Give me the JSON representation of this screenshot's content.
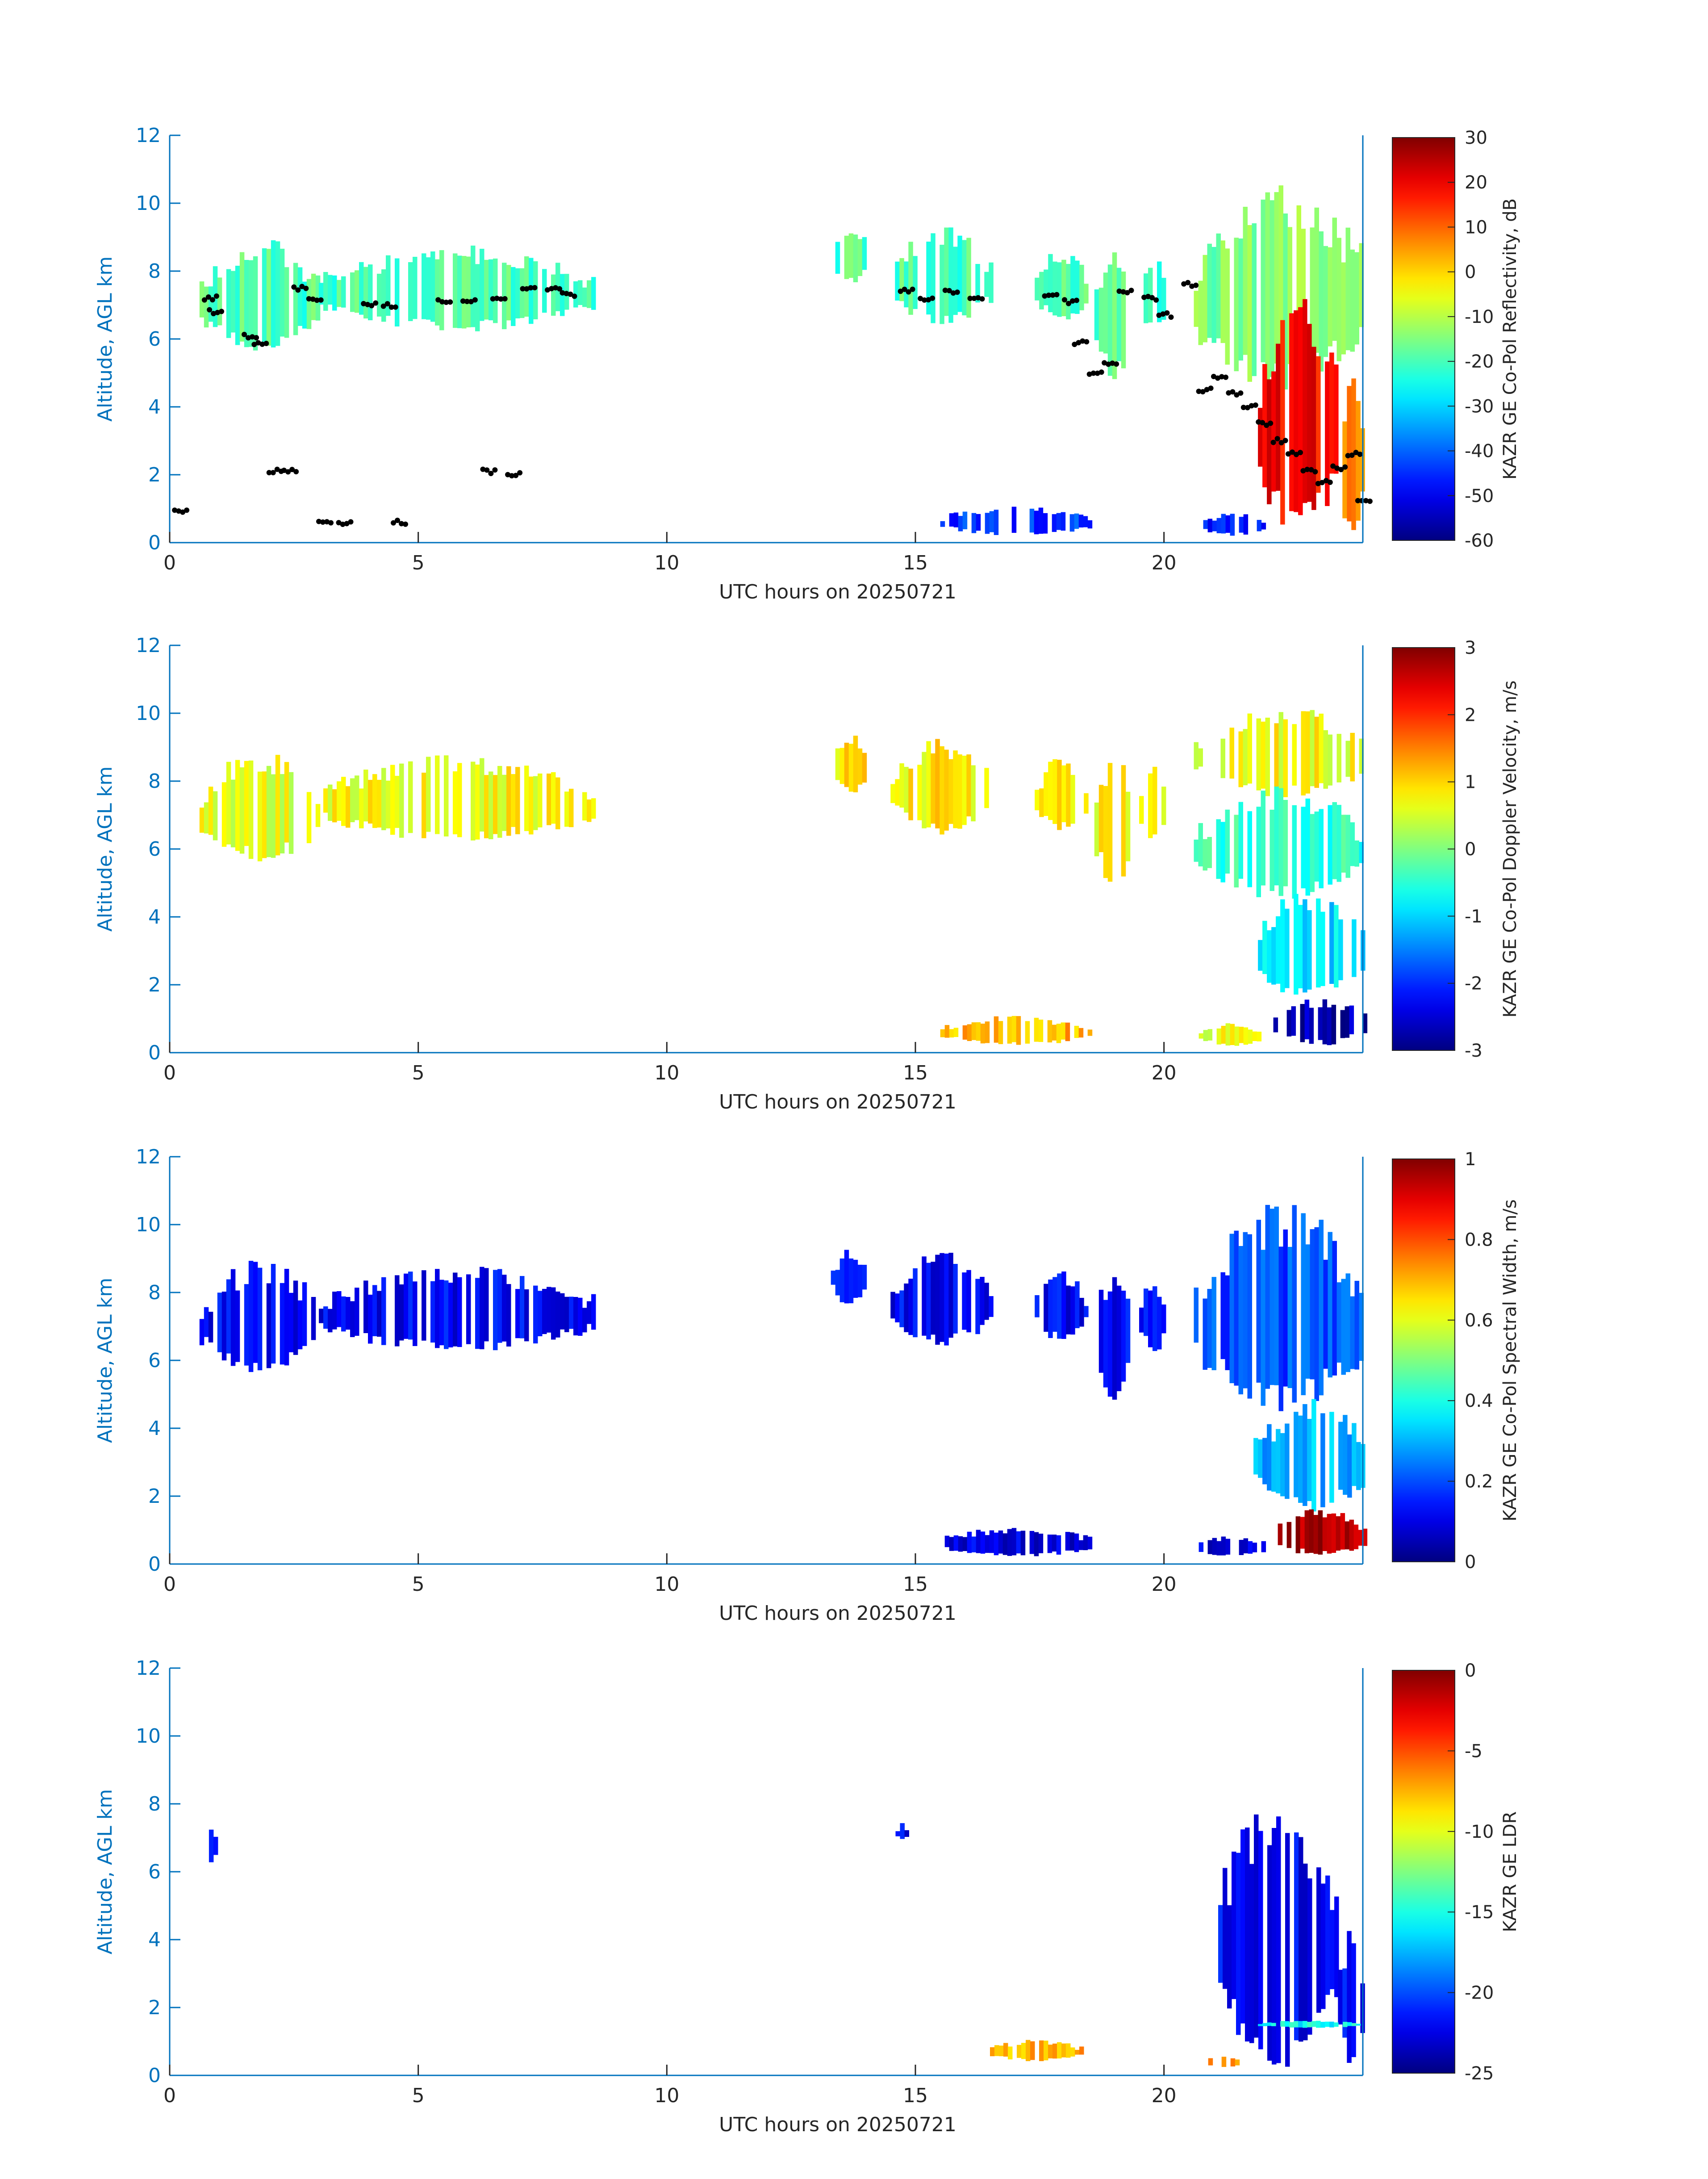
{
  "figure": {
    "xlabel": "UTC hours on 20250721",
    "ylabel": "Altitude, AGL km",
    "axis_color": "#0072bd",
    "xticks": [
      0,
      5,
      10,
      15,
      20
    ],
    "yticks": [
      0,
      2,
      4,
      6,
      8,
      10,
      12
    ],
    "xlim": [
      0,
      24
    ],
    "ylim": [
      0,
      12
    ]
  },
  "chart_data": [
    {
      "type": "heatmap",
      "title": "",
      "xlabel": "UTC hours on 20250721",
      "ylabel": "Altitude, AGL km",
      "xlim": [
        0,
        24
      ],
      "ylim": [
        0,
        12
      ],
      "colorbar": {
        "label": "KAZR GE Co-Pol Reflectivity, dB",
        "range": [
          -60,
          30
        ],
        "ticks": [
          30,
          20,
          10,
          0,
          -10,
          -20,
          -30,
          -40,
          -50,
          -60
        ]
      },
      "fill_value": 0.45,
      "regions": [
        {
          "x": [
            0.6,
            3.0
          ],
          "y": [
            5.6,
            8.6
          ],
          "value": 0.45
        },
        {
          "x": [
            3.0,
            8.5
          ],
          "y": [
            6.2,
            8.5
          ],
          "value": 0.45
        },
        {
          "x": [
            13.3,
            14.0
          ],
          "y": [
            7.6,
            9.2
          ],
          "value": 0.45
        },
        {
          "x": [
            14.5,
            16.5
          ],
          "y": [
            6.4,
            9.0
          ],
          "value": 0.45
        },
        {
          "x": [
            17.4,
            18.4
          ],
          "y": [
            6.5,
            8.5
          ],
          "value": 0.45
        },
        {
          "x": [
            18.6,
            19.3
          ],
          "y": [
            4.8,
            8.5
          ],
          "value": 0.45
        },
        {
          "x": [
            19.5,
            20.0
          ],
          "y": [
            6.2,
            8.2
          ],
          "value": 0.45
        },
        {
          "x": [
            20.6,
            24.0
          ],
          "y": [
            4.5,
            10.0
          ],
          "value": 0.5
        },
        {
          "x": [
            21.8,
            23.5
          ],
          "y": [
            0.2,
            6.5
          ],
          "value": 0.88
        },
        {
          "x": [
            23.5,
            24.0
          ],
          "y": [
            0.2,
            4.5
          ],
          "value": 0.75
        },
        {
          "x": [
            15.5,
            18.5
          ],
          "y": [
            0.2,
            1.0
          ],
          "value": 0.18
        },
        {
          "x": [
            20.7,
            22.0
          ],
          "y": [
            0.2,
            0.8
          ],
          "value": 0.15
        }
      ],
      "cloud_base_points": [
        {
          "x": 0.1,
          "y": 0.9
        },
        {
          "x": 0.7,
          "y": 7.2
        },
        {
          "x": 0.8,
          "y": 6.8
        },
        {
          "x": 1.5,
          "y": 6.1
        },
        {
          "x": 1.7,
          "y": 5.9
        },
        {
          "x": 2.0,
          "y": 2.1
        },
        {
          "x": 2.3,
          "y": 2.1
        },
        {
          "x": 2.5,
          "y": 7.5
        },
        {
          "x": 2.8,
          "y": 7.2
        },
        {
          "x": 3.0,
          "y": 0.6
        },
        {
          "x": 3.4,
          "y": 0.6
        },
        {
          "x": 3.9,
          "y": 7.0
        },
        {
          "x": 4.3,
          "y": 7.0
        },
        {
          "x": 4.5,
          "y": 0.6
        },
        {
          "x": 5.4,
          "y": 7.1
        },
        {
          "x": 5.9,
          "y": 7.1
        },
        {
          "x": 6.3,
          "y": 2.1
        },
        {
          "x": 6.5,
          "y": 7.2
        },
        {
          "x": 6.8,
          "y": 2.0
        },
        {
          "x": 7.1,
          "y": 7.5
        },
        {
          "x": 7.6,
          "y": 7.5
        },
        {
          "x": 7.9,
          "y": 7.3
        },
        {
          "x": 14.7,
          "y": 7.4
        },
        {
          "x": 15.1,
          "y": 7.2
        },
        {
          "x": 15.6,
          "y": 7.4
        },
        {
          "x": 16.1,
          "y": 7.2
        },
        {
          "x": 17.6,
          "y": 7.3
        },
        {
          "x": 18.0,
          "y": 7.1
        },
        {
          "x": 18.2,
          "y": 5.9
        },
        {
          "x": 18.5,
          "y": 5.0
        },
        {
          "x": 18.8,
          "y": 5.3
        },
        {
          "x": 19.1,
          "y": 7.4
        },
        {
          "x": 19.6,
          "y": 7.2
        },
        {
          "x": 19.9,
          "y": 6.7
        },
        {
          "x": 20.4,
          "y": 7.6
        },
        {
          "x": 20.7,
          "y": 4.5
        },
        {
          "x": 21.0,
          "y": 4.9
        },
        {
          "x": 21.3,
          "y": 4.4
        },
        {
          "x": 21.6,
          "y": 4.0
        },
        {
          "x": 21.9,
          "y": 3.5
        },
        {
          "x": 22.2,
          "y": 3.0
        },
        {
          "x": 22.5,
          "y": 2.6
        },
        {
          "x": 22.8,
          "y": 2.1
        },
        {
          "x": 23.1,
          "y": 1.8
        },
        {
          "x": 23.4,
          "y": 2.2
        },
        {
          "x": 23.7,
          "y": 2.6
        },
        {
          "x": 23.9,
          "y": 1.2
        }
      ]
    },
    {
      "type": "heatmap",
      "title": "",
      "xlabel": "UTC hours on 20250721",
      "ylabel": "Altitude, AGL km",
      "xlim": [
        0,
        24
      ],
      "ylim": [
        0,
        12
      ],
      "colorbar": {
        "label": "KAZR GE Co-Pol Doppler Velocity, m/s",
        "range": [
          -3,
          3
        ],
        "ticks": [
          3,
          2,
          1,
          0,
          -1,
          -2,
          -3
        ]
      },
      "fill_value": 0.6,
      "regions": [
        {
          "x": [
            0.6,
            3.0
          ],
          "y": [
            5.6,
            8.6
          ],
          "value": 0.6
        },
        {
          "x": [
            3.0,
            8.5
          ],
          "y": [
            6.2,
            8.5
          ],
          "value": 0.62
        },
        {
          "x": [
            13.3,
            14.0
          ],
          "y": [
            7.6,
            9.2
          ],
          "value": 0.65
        },
        {
          "x": [
            14.5,
            16.5
          ],
          "y": [
            6.4,
            9.0
          ],
          "value": 0.64
        },
        {
          "x": [
            17.4,
            18.4
          ],
          "y": [
            6.5,
            8.5
          ],
          "value": 0.65
        },
        {
          "x": [
            18.6,
            19.3
          ],
          "y": [
            4.8,
            8.5
          ],
          "value": 0.63
        },
        {
          "x": [
            19.5,
            20.0
          ],
          "y": [
            6.2,
            8.2
          ],
          "value": 0.6
        },
        {
          "x": [
            20.6,
            24.0
          ],
          "y": [
            7.5,
            10.0
          ],
          "value": 0.62
        },
        {
          "x": [
            20.6,
            24.0
          ],
          "y": [
            4.5,
            7.5
          ],
          "value": 0.42
        },
        {
          "x": [
            21.8,
            24.0
          ],
          "y": [
            1.5,
            4.5
          ],
          "value": 0.34
        },
        {
          "x": [
            22.2,
            24.0
          ],
          "y": [
            0.2,
            1.5
          ],
          "value": 0.04
        },
        {
          "x": [
            15.5,
            18.5
          ],
          "y": [
            0.2,
            1.0
          ],
          "value": 0.7
        },
        {
          "x": [
            20.7,
            22.0
          ],
          "y": [
            0.2,
            0.8
          ],
          "value": 0.6
        }
      ]
    },
    {
      "type": "heatmap",
      "title": "",
      "xlabel": "UTC hours on 20250721",
      "ylabel": "Altitude, AGL km",
      "xlim": [
        0,
        24
      ],
      "ylim": [
        0,
        12
      ],
      "colorbar": {
        "label": "KAZR GE Co-Pol Spectral Width, m/s",
        "range": [
          0,
          1
        ],
        "ticks": [
          1,
          0.8,
          0.6,
          0.4,
          0.2,
          0
        ]
      },
      "fill_value": 0.12,
      "regions": [
        {
          "x": [
            0.6,
            3.0
          ],
          "y": [
            5.6,
            8.6
          ],
          "value": 0.12
        },
        {
          "x": [
            3.0,
            8.5
          ],
          "y": [
            6.2,
            8.5
          ],
          "value": 0.12
        },
        {
          "x": [
            13.3,
            14.0
          ],
          "y": [
            7.6,
            9.2
          ],
          "value": 0.12
        },
        {
          "x": [
            14.5,
            16.5
          ],
          "y": [
            6.4,
            9.0
          ],
          "value": 0.12
        },
        {
          "x": [
            17.4,
            18.4
          ],
          "y": [
            6.5,
            8.5
          ],
          "value": 0.12
        },
        {
          "x": [
            18.6,
            19.3
          ],
          "y": [
            4.8,
            8.5
          ],
          "value": 0.12
        },
        {
          "x": [
            19.5,
            20.0
          ],
          "y": [
            6.2,
            8.2
          ],
          "value": 0.12
        },
        {
          "x": [
            20.6,
            24.0
          ],
          "y": [
            4.5,
            10.0
          ],
          "value": 0.2
        },
        {
          "x": [
            21.8,
            24.0
          ],
          "y": [
            1.5,
            4.5
          ],
          "value": 0.3
        },
        {
          "x": [
            22.2,
            24.0
          ],
          "y": [
            0.2,
            1.5
          ],
          "value": 0.95
        },
        {
          "x": [
            15.5,
            18.5
          ],
          "y": [
            0.2,
            1.0
          ],
          "value": 0.1
        },
        {
          "x": [
            20.7,
            22.0
          ],
          "y": [
            0.2,
            0.8
          ],
          "value": 0.1
        }
      ]
    },
    {
      "type": "heatmap",
      "title": "",
      "xlabel": "UTC hours on 20250721",
      "ylabel": "Altitude, AGL km",
      "xlim": [
        0,
        24
      ],
      "ylim": [
        0,
        12
      ],
      "colorbar": {
        "label": "KAZR GE LDR",
        "range": [
          -25,
          0
        ],
        "ticks": [
          0,
          -5,
          -10,
          -15,
          -20,
          -25
        ]
      },
      "fill_value": 0.12,
      "regions": [
        {
          "x": [
            0.7,
            0.9
          ],
          "y": [
            6.2,
            7.2
          ],
          "value": 0.12
        },
        {
          "x": [
            14.6,
            14.8
          ],
          "y": [
            6.9,
            7.4
          ],
          "value": 0.12
        },
        {
          "x": [
            21.0,
            23.5
          ],
          "y": [
            0.2,
            7.4
          ],
          "value": 0.12
        },
        {
          "x": [
            23.5,
            24.0
          ],
          "y": [
            0.2,
            4.0
          ],
          "value": 0.12
        },
        {
          "x": [
            21.8,
            24.0
          ],
          "y": [
            1.4,
            1.6
          ],
          "value": 0.38
        },
        {
          "x": [
            16.5,
            18.3
          ],
          "y": [
            0.4,
            1.0
          ],
          "value": 0.7
        },
        {
          "x": [
            20.8,
            21.5
          ],
          "y": [
            0.2,
            0.6
          ],
          "value": 0.75
        }
      ]
    }
  ]
}
